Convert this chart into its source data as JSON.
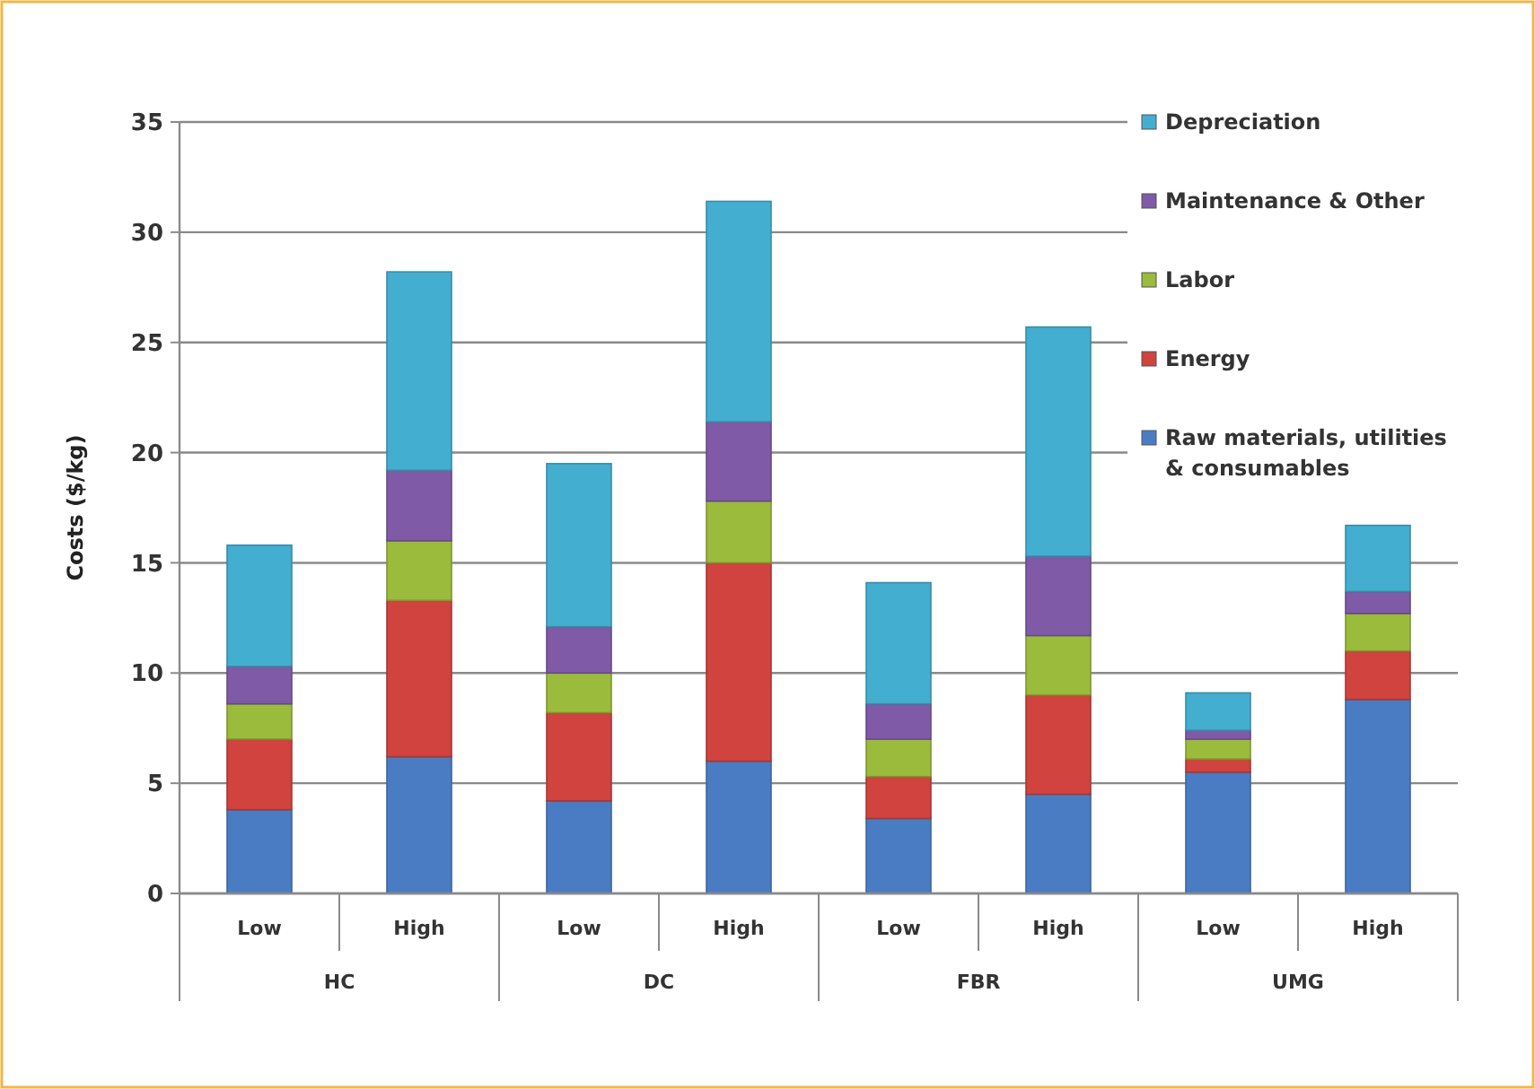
{
  "chart_data": {
    "type": "bar",
    "stacked": true,
    "ylabel": "Costs ($/kg)",
    "categories": [
      "Low",
      "High",
      "Low",
      "High",
      "Low",
      "High",
      "Low",
      "High"
    ],
    "annotations": [
      "HC",
      "DC",
      "FBR",
      "UMG"
    ],
    "ylim": [
      0,
      35
    ],
    "yticks": [
      0,
      5,
      10,
      15,
      20,
      25,
      30,
      35
    ],
    "grid": "y",
    "legend": "top right",
    "series": [
      {
        "name": "Raw materials, utilities & consumables",
        "color": "#4a7cc4",
        "values": [
          3.8,
          6.2,
          4.2,
          6.0,
          3.4,
          4.5,
          5.5,
          8.8
        ]
      },
      {
        "name": "Energy",
        "color": "#d0433e",
        "values": [
          3.2,
          7.1,
          4.0,
          9.0,
          1.9,
          4.5,
          0.6,
          2.2
        ]
      },
      {
        "name": "Labor",
        "color": "#9bbb3c",
        "values": [
          1.6,
          2.7,
          1.8,
          2.8,
          1.7,
          2.7,
          0.9,
          1.7
        ]
      },
      {
        "name": "Maintenance & Other",
        "color": "#7f5aa6",
        "values": [
          1.7,
          3.2,
          2.1,
          3.6,
          1.6,
          3.6,
          0.4,
          1.0
        ]
      },
      {
        "name": "Depreciation",
        "color": "#44aed0",
        "values": [
          5.5,
          9.0,
          7.4,
          10.0,
          5.5,
          10.4,
          1.7,
          3.0
        ]
      }
    ]
  }
}
